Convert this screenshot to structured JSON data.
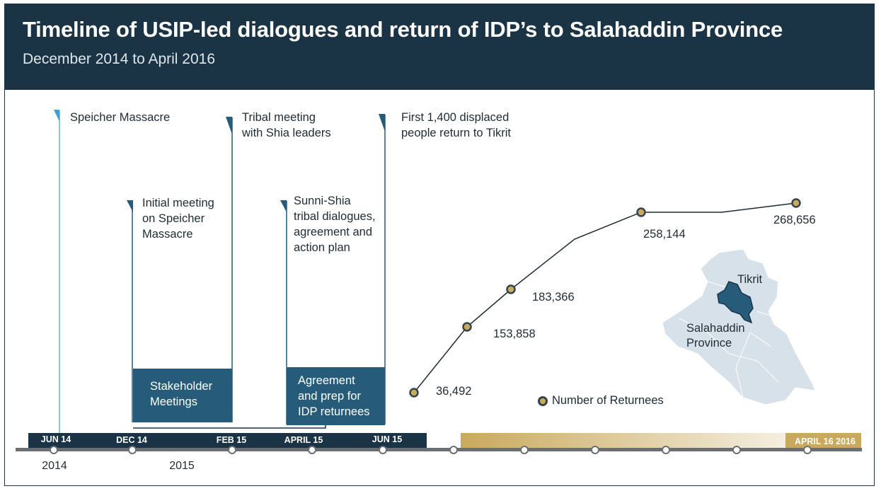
{
  "header": {
    "title": "Timeline of USIP-led dialogues and return of IDP’s to Salahaddin Province",
    "subtitle": "December 2014 to April 2016"
  },
  "events": [
    {
      "label": "Speicher Massacre"
    },
    {
      "label": "Initial meeting\non Speicher\nMassacre"
    },
    {
      "label": "Tribal meeting\nwith Shia leaders"
    },
    {
      "label": "Sunni-Shia\ntribal dialogues,\nagreement and\naction plan"
    },
    {
      "label": "First 1,400 displaced\npeople return to Tikrit"
    }
  ],
  "boxes": [
    {
      "label": "Stakeholder\nMeetings"
    },
    {
      "label": "Agreement\nand prep for\nIDP returnees"
    }
  ],
  "axis": {
    "month_labels": [
      "JUN 14",
      "DEC 14",
      "FEB 15",
      "APRIL 15",
      "JUN 15"
    ],
    "year_labels": [
      "2014",
      "2015"
    ],
    "end_label": "APRIL 16 2016"
  },
  "chart_data": {
    "type": "line",
    "series": [
      {
        "name": "Number of Returnees",
        "values": [
          36492,
          153858,
          183366,
          258144,
          268656
        ]
      }
    ],
    "value_labels": [
      "36,492",
      "153,858",
      "183,366",
      "258,144",
      "268,656"
    ]
  },
  "legend": {
    "label": "Number of Returnees"
  },
  "map": {
    "city_label": "Tikrit",
    "province_label": "Salahaddin\nProvince"
  },
  "colors": {
    "navy": "#1a3446",
    "accent_blue": "#265c7a",
    "gold": "#c9a95d",
    "axis_gray": "#6b6f72"
  }
}
